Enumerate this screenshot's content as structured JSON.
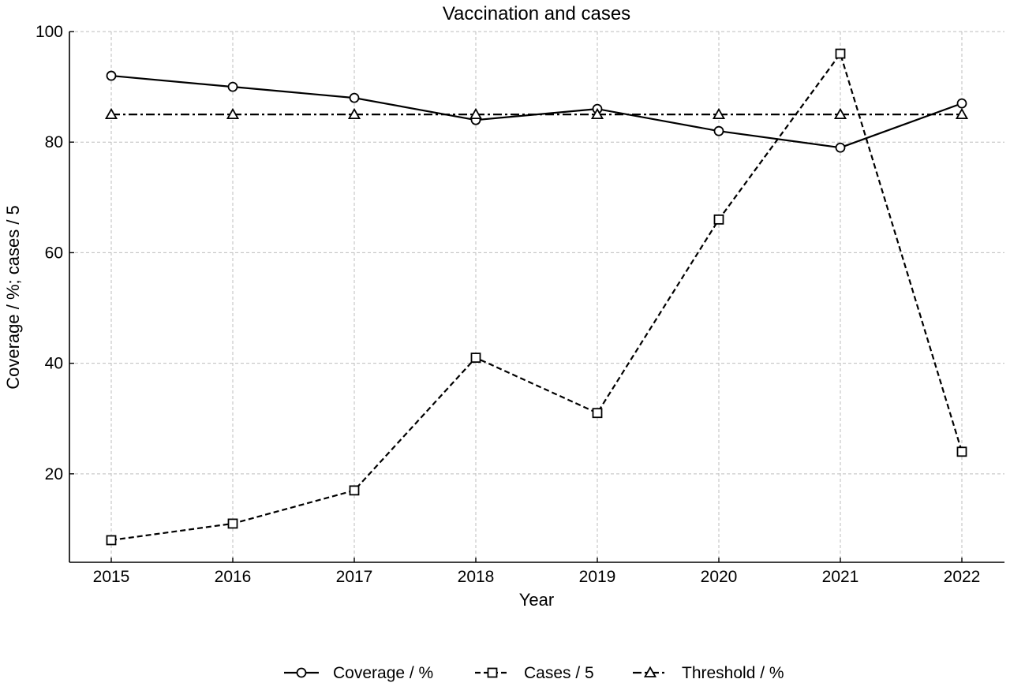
{
  "chart_data": {
    "type": "line",
    "title": "Vaccination and cases",
    "xlabel": "Year",
    "ylabel": "Coverage / %; cases / 5",
    "categories": [
      "2015",
      "2016",
      "2017",
      "2018",
      "2019",
      "2020",
      "2021",
      "2022"
    ],
    "yticks": [
      "20",
      "40",
      "60",
      "80",
      "100"
    ],
    "ylim": [
      4,
      100
    ],
    "grid": true,
    "legend_position": "bottom-center",
    "series": [
      {
        "name": "Coverage / %",
        "values": [
          92,
          90,
          88,
          84,
          86,
          82,
          79,
          87
        ],
        "line_style": "solid",
        "marker": "circle",
        "color": "#000000"
      },
      {
        "name": "Cases / 5",
        "values": [
          8,
          11,
          17,
          41,
          31,
          66,
          96,
          24
        ],
        "line_style": "dashed",
        "marker": "square",
        "color": "#000000"
      },
      {
        "name": "Threshold / %",
        "values": [
          85,
          85,
          85,
          85,
          85,
          85,
          85,
          85
        ],
        "line_style": "dashdot",
        "marker": "triangle",
        "color": "#000000"
      }
    ]
  }
}
